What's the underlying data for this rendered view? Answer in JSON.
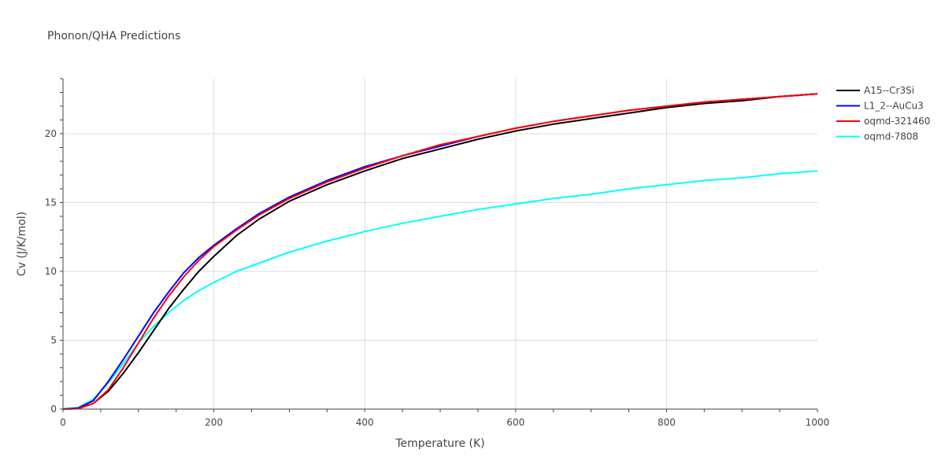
{
  "chart_data": {
    "type": "line",
    "title": "Phonon/QHA Predictions",
    "xlabel": "Temperature (K)",
    "ylabel": "Cv (J/K/mol)",
    "xlim": [
      0,
      1000
    ],
    "ylim": [
      0,
      24
    ],
    "xticks": [
      0,
      200,
      400,
      600,
      800,
      1000
    ],
    "yticks": [
      0,
      5,
      10,
      15,
      20
    ],
    "xtick_labels": [
      "0",
      "200",
      "400",
      "600",
      "800",
      "1000"
    ],
    "ytick_labels": [
      "0",
      "5",
      "10",
      "15",
      "20"
    ],
    "grid": true,
    "legend_position": "top-right",
    "x": [
      0,
      20,
      40,
      60,
      80,
      100,
      120,
      140,
      160,
      180,
      200,
      230,
      260,
      300,
      350,
      400,
      450,
      500,
      550,
      600,
      650,
      700,
      750,
      800,
      850,
      900,
      950,
      1000
    ],
    "series": [
      {
        "name": "A15--Cr3Si",
        "color": "#000000",
        "values": [
          0,
          0.05,
          0.4,
          1.3,
          2.6,
          4.1,
          5.7,
          7.3,
          8.7,
          10.0,
          11.1,
          12.6,
          13.8,
          15.1,
          16.3,
          17.3,
          18.2,
          18.9,
          19.6,
          20.2,
          20.7,
          21.1,
          21.5,
          21.9,
          22.2,
          22.4,
          22.7,
          22.9
        ]
      },
      {
        "name": "L1_2--AuCu3",
        "color": "#0000ff",
        "values": [
          0,
          0.08,
          0.6,
          2.0,
          3.6,
          5.3,
          7.0,
          8.5,
          9.9,
          11.0,
          11.9,
          13.1,
          14.2,
          15.4,
          16.6,
          17.6,
          18.4,
          19.1,
          19.8,
          20.4,
          20.9,
          21.3,
          21.7,
          22.0,
          22.3,
          22.5,
          22.7,
          22.9
        ]
      },
      {
        "name": "oqmd-321460",
        "color": "#ff0000",
        "values": [
          0,
          0.03,
          0.4,
          1.4,
          3.0,
          4.8,
          6.6,
          8.2,
          9.6,
          10.8,
          11.8,
          13.0,
          14.1,
          15.3,
          16.5,
          17.5,
          18.4,
          19.2,
          19.8,
          20.4,
          20.9,
          21.3,
          21.7,
          22.0,
          22.3,
          22.5,
          22.7,
          22.9
        ]
      },
      {
        "name": "oqmd-7808",
        "color": "#00ffff",
        "values": [
          0,
          0.1,
          0.7,
          1.9,
          3.3,
          4.8,
          6.0,
          7.0,
          7.9,
          8.6,
          9.2,
          10.0,
          10.6,
          11.4,
          12.2,
          12.9,
          13.5,
          14.0,
          14.5,
          14.9,
          15.3,
          15.6,
          16.0,
          16.3,
          16.6,
          16.8,
          17.1,
          17.3
        ]
      }
    ]
  }
}
